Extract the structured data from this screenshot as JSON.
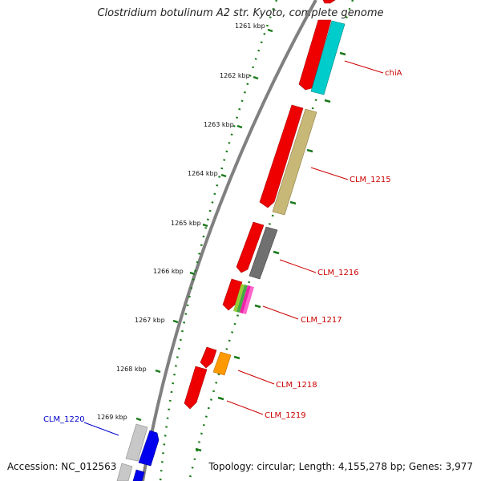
{
  "title": "Clostridium botulinum A2 str. Kyoto, complete genome",
  "accession": "Accession: NC_012563",
  "stats": "Topology: circular; Length: 4,155,278 bp; Genes: 3,977",
  "kbp_labels": [
    "1261 kbp",
    "1262 kbp",
    "1263 kbp",
    "1264 kbp",
    "1265 kbp",
    "1266 kbp",
    "1267 kbp",
    "1268 kbp",
    "1269 kbp"
  ],
  "gene_labels": [
    {
      "name": "chiA",
      "color": "#cc0000"
    },
    {
      "name": "CLM_1215",
      "color": "#cc0000"
    },
    {
      "name": "CLM_1216",
      "color": "#cc0000"
    },
    {
      "name": "CLM_1217",
      "color": "#cc0000"
    },
    {
      "name": "CLM_1218",
      "color": "#cc0000"
    },
    {
      "name": "CLM_1219",
      "color": "#cc0000"
    },
    {
      "name": "CLM_1220",
      "color": "#0000cc"
    }
  ],
  "colors": {
    "backbone": "#808080",
    "tick": "#1a7a1a",
    "gene_red": "#ee0000",
    "gene_cyan": "#00cccc",
    "gene_khaki": "#c8b878",
    "gene_gray": "#707070",
    "gene_orange": "#ff9900",
    "gene_blue": "#0000ee",
    "gene_silver": "#c8c8c8"
  }
}
